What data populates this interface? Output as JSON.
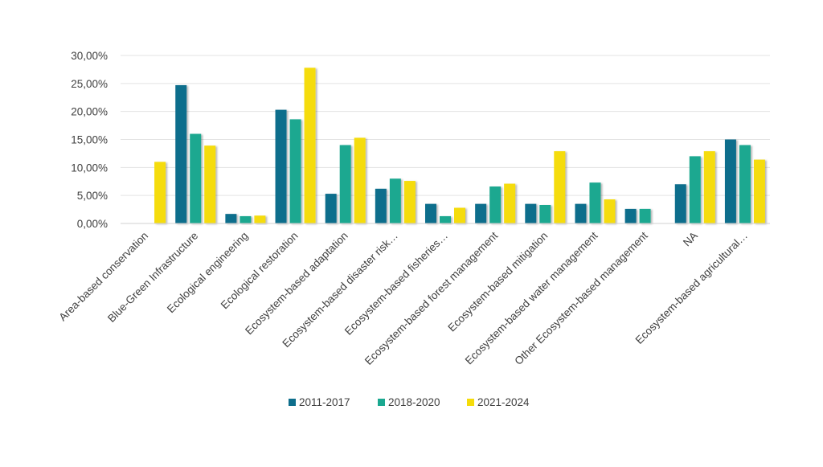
{
  "chart_data": {
    "type": "bar",
    "title": "",
    "xlabel": "",
    "ylabel": "",
    "ylim": [
      0,
      30
    ],
    "y_tick_values": [
      0,
      5,
      10,
      15,
      20,
      25,
      30
    ],
    "y_tick_labels": [
      "0,00%",
      "5,00%",
      "10,00%",
      "15,00%",
      "20,00%",
      "25,00%",
      "30,00%"
    ],
    "grid": true,
    "legend_position": "bottom",
    "categories": [
      "Area-based conservation",
      "Blue-Green Infrastructure",
      "Ecological engineering",
      "Ecological restoration",
      "Ecosystem-based adaptation",
      "Ecosystem-based disaster risk…",
      "Ecosystem-based fisheries…",
      "Ecosystem-based forest management",
      "Ecosystem-based mitigation",
      "Ecosystem-based water management",
      "Other Ecosystem-based management",
      "NA",
      "Ecosystem-based agricultural…"
    ],
    "series": [
      {
        "name": "2011-2017",
        "color": "#0e6e8c",
        "values": [
          0,
          24.7,
          1.7,
          20.3,
          5.3,
          6.2,
          3.5,
          3.5,
          3.5,
          3.5,
          2.6,
          7.0,
          15.0
        ]
      },
      {
        "name": "2018-2020",
        "color": "#1aa890",
        "values": [
          0,
          16.0,
          1.3,
          18.6,
          14.0,
          8.0,
          1.3,
          6.6,
          3.3,
          7.3,
          2.6,
          12.0,
          14.0
        ]
      },
      {
        "name": "2021-2024",
        "color": "#f5dc0a",
        "values": [
          11.0,
          13.9,
          1.4,
          27.8,
          15.3,
          7.6,
          2.8,
          7.1,
          12.9,
          4.3,
          0,
          12.9,
          11.4
        ]
      }
    ]
  }
}
